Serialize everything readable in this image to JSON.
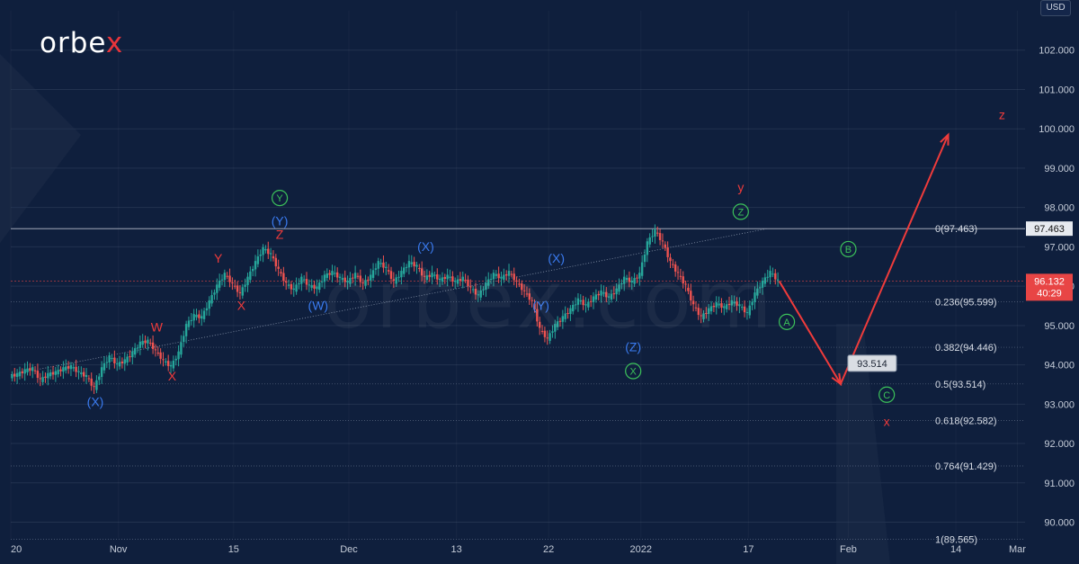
{
  "brand": {
    "logo_main": "orbe",
    "logo_x": "x",
    "watermark": "orbex.com"
  },
  "currency_button": "USD",
  "colors": {
    "background": "#0f1f3d",
    "grid": "#22324f",
    "axis_text": "#c5ccd8",
    "candle_up": "#26a69a",
    "candle_down": "#ef5350",
    "wave_red": "#ef3b3b",
    "wave_blue": "#3a7bf0",
    "wave_green": "#3cc25a",
    "projection": "#ef3b3b",
    "price_tag": "#e84545"
  },
  "chart_data": {
    "type": "candlestick",
    "instrument_hint": "US Dollar Index",
    "ylim": [
      89.6,
      103.0
    ],
    "y_ticks": [
      "90.000",
      "91.000",
      "92.000",
      "93.000",
      "94.000",
      "95.000",
      "96.000",
      "97.000",
      "98.000",
      "99.000",
      "100.000",
      "101.000",
      "102.000"
    ],
    "x_ticks": [
      "20",
      "Nov",
      "15",
      "Dec",
      "13",
      "22",
      "2022",
      "17",
      "Feb",
      "14",
      "Mar"
    ],
    "current_price": {
      "value": 96.132,
      "label": "96.132",
      "countdown": "40:29"
    },
    "level_label": {
      "value": 97.463,
      "label": "97.463"
    },
    "fib_levels": [
      {
        "label": "0(97.463)",
        "value": 97.463
      },
      {
        "label": "0.236(95.599)",
        "value": 95.599
      },
      {
        "label": "0.382(94.446)",
        "value": 94.446
      },
      {
        "label": "0.5(93.514)",
        "value": 93.514
      },
      {
        "label": "0.618(92.582)",
        "value": 92.582
      },
      {
        "label": "0.764(91.429)",
        "value": 91.429
      },
      {
        "label": "1(89.565)",
        "value": 89.565
      }
    ],
    "price_path": [
      [
        0,
        93.7
      ],
      [
        1,
        93.75
      ],
      [
        2,
        93.85
      ],
      [
        3,
        93.9
      ],
      [
        4,
        93.6
      ],
      [
        5,
        93.75
      ],
      [
        6,
        93.8
      ],
      [
        7,
        93.9
      ],
      [
        8,
        93.95
      ],
      [
        9,
        93.8
      ],
      [
        10,
        93.7
      ],
      [
        11,
        93.4
      ],
      [
        12,
        93.9
      ],
      [
        13,
        94.2
      ],
      [
        14,
        94.0
      ],
      [
        15,
        94.1
      ],
      [
        16,
        94.3
      ],
      [
        17,
        94.55
      ],
      [
        18,
        94.6
      ],
      [
        19,
        94.35
      ],
      [
        20,
        94.1
      ],
      [
        21,
        93.95
      ],
      [
        22,
        94.3
      ],
      [
        23,
        95.0
      ],
      [
        24,
        95.25
      ],
      [
        25,
        95.2
      ],
      [
        26,
        95.6
      ],
      [
        27,
        96.0
      ],
      [
        28,
        96.3
      ],
      [
        29,
        96.05
      ],
      [
        30,
        95.8
      ],
      [
        31,
        96.2
      ],
      [
        32,
        96.6
      ],
      [
        33,
        96.95
      ],
      [
        34,
        96.8
      ],
      [
        35,
        96.4
      ],
      [
        36,
        96.05
      ],
      [
        37,
        95.9
      ],
      [
        38,
        96.2
      ],
      [
        39,
        96.0
      ],
      [
        40,
        95.95
      ],
      [
        41,
        96.25
      ],
      [
        42,
        96.35
      ],
      [
        43,
        96.2
      ],
      [
        44,
        96.1
      ],
      [
        45,
        96.3
      ],
      [
        46,
        96.05
      ],
      [
        47,
        96.25
      ],
      [
        48,
        96.6
      ],
      [
        49,
        96.45
      ],
      [
        50,
        96.1
      ],
      [
        51,
        96.35
      ],
      [
        52,
        96.6
      ],
      [
        53,
        96.5
      ],
      [
        54,
        96.2
      ],
      [
        55,
        96.3
      ],
      [
        56,
        96.15
      ],
      [
        57,
        96.25
      ],
      [
        58,
        96.1
      ],
      [
        59,
        96.2
      ],
      [
        60,
        95.95
      ],
      [
        61,
        95.75
      ],
      [
        62,
        96.05
      ],
      [
        63,
        96.3
      ],
      [
        64,
        96.2
      ],
      [
        65,
        96.35
      ],
      [
        66,
        96.1
      ],
      [
        67,
        95.85
      ],
      [
        68,
        95.6
      ],
      [
        69,
        94.9
      ],
      [
        70,
        94.65
      ],
      [
        71,
        95.0
      ],
      [
        72,
        95.2
      ],
      [
        73,
        95.4
      ],
      [
        74,
        95.65
      ],
      [
        75,
        95.5
      ],
      [
        76,
        95.7
      ],
      [
        77,
        95.85
      ],
      [
        78,
        95.7
      ],
      [
        79,
        95.9
      ],
      [
        80,
        96.2
      ],
      [
        81,
        96.1
      ],
      [
        82,
        96.3
      ],
      [
        83,
        97.1
      ],
      [
        84,
        97.4
      ],
      [
        85,
        97.1
      ],
      [
        86,
        96.6
      ],
      [
        87,
        96.3
      ],
      [
        88,
        96.0
      ],
      [
        89,
        95.5
      ],
      [
        90,
        95.2
      ],
      [
        91,
        95.4
      ],
      [
        92,
        95.55
      ],
      [
        93,
        95.45
      ],
      [
        94,
        95.6
      ],
      [
        95,
        95.5
      ],
      [
        96,
        95.3
      ],
      [
        97,
        95.8
      ],
      [
        98,
        96.1
      ],
      [
        99,
        96.35
      ],
      [
        100,
        96.13
      ]
    ],
    "projection_path": [
      {
        "x": 100,
        "y": 96.13
      },
      {
        "x": 108,
        "y": 93.514
      },
      {
        "x": 122,
        "y": 99.85
      }
    ],
    "projection_label": "93.514",
    "wave_labels": [
      {
        "text": "(X)",
        "x": 11,
        "y": 92.95,
        "color": "blue"
      },
      {
        "text": "W",
        "x": 19,
        "y": 94.85,
        "color": "red"
      },
      {
        "text": "X",
        "x": 21,
        "y": 93.6,
        "color": "red"
      },
      {
        "text": "Y",
        "x": 27,
        "y": 96.6,
        "color": "red"
      },
      {
        "text": "X",
        "x": 30,
        "y": 95.4,
        "color": "red"
      },
      {
        "text": "Z",
        "x": 35,
        "y": 97.2,
        "color": "red"
      },
      {
        "text": "(Y)",
        "x": 35,
        "y": 97.55,
        "color": "blue"
      },
      {
        "text": "Y",
        "x": 35,
        "y": 98.15,
        "color": "green",
        "circled": true
      },
      {
        "text": "(W)",
        "x": 40,
        "y": 95.4,
        "color": "blue"
      },
      {
        "text": "(X)",
        "x": 54,
        "y": 96.9,
        "color": "blue"
      },
      {
        "text": "(X)",
        "x": 71,
        "y": 96.6,
        "color": "blue"
      },
      {
        "text": "(Y)",
        "x": 69,
        "y": 95.4,
        "color": "blue"
      },
      {
        "text": "(Z)",
        "x": 81,
        "y": 94.35,
        "color": "blue"
      },
      {
        "text": "X",
        "x": 81,
        "y": 93.75,
        "color": "green",
        "circled": true
      },
      {
        "text": "y",
        "x": 95,
        "y": 98.4,
        "color": "red"
      },
      {
        "text": "Z",
        "x": 95,
        "y": 97.8,
        "color": "green",
        "circled": true
      },
      {
        "text": "A",
        "x": 101,
        "y": 95.0,
        "color": "green",
        "circled": true
      },
      {
        "text": "B",
        "x": 109,
        "y": 96.85,
        "color": "green",
        "circled": true
      },
      {
        "text": "C",
        "x": 114,
        "y": 93.15,
        "color": "green",
        "circled": true
      },
      {
        "text": "x",
        "x": 114,
        "y": 92.45,
        "color": "red"
      },
      {
        "text": "z",
        "x": 129,
        "y": 100.25,
        "color": "red"
      }
    ]
  }
}
